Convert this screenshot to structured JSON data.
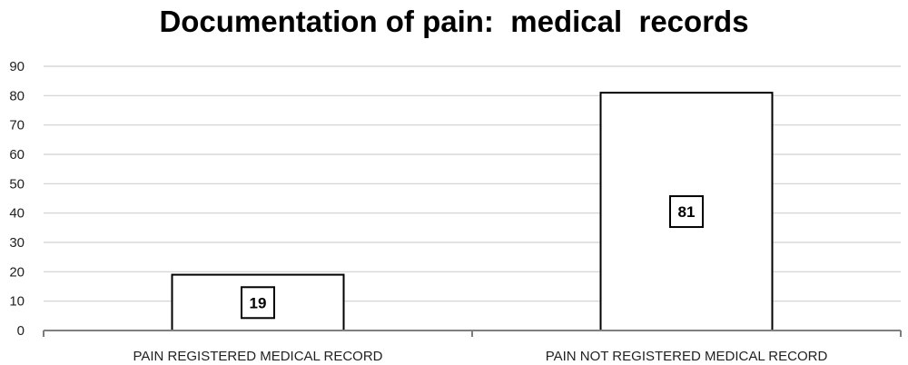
{
  "chart_data": {
    "type": "bar",
    "title": "Documentation of pain:  medical  records",
    "categories": [
      "PAIN REGISTERED MEDICAL RECORD",
      "PAIN NOT REGISTERED MEDICAL RECORD"
    ],
    "values": [
      19,
      81
    ],
    "data_labels": [
      "19",
      "81"
    ],
    "xlabel": "",
    "ylabel": "",
    "ylim": [
      0,
      90
    ],
    "yticks": [
      0,
      10,
      20,
      30,
      40,
      50,
      60,
      70,
      80,
      90
    ],
    "grid": true,
    "legend": "none",
    "colors": {
      "bar_fill": "#ffffff",
      "bar_stroke": "#000000",
      "grid": "#d0d0d0",
      "axis": "#7f7f7f"
    }
  }
}
